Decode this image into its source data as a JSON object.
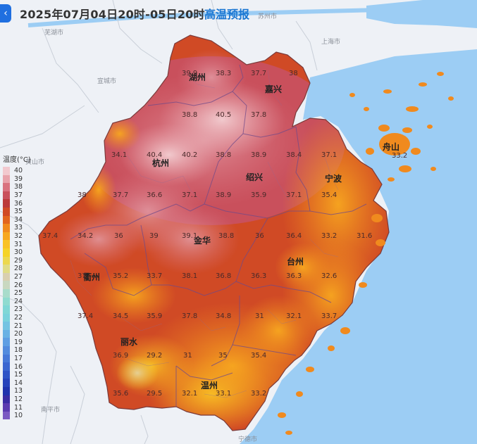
{
  "header": {
    "back_icon": "chevron-left-icon",
    "title": "2025年07月04日20时-05日20时",
    "tag": "高温预报"
  },
  "legend": {
    "title": "温度(°C)",
    "items": [
      {
        "label": "40",
        "color": "#f2c9cf"
      },
      {
        "label": "39",
        "color": "#e8a2ab"
      },
      {
        "label": "38",
        "color": "#d9727f"
      },
      {
        "label": "37",
        "color": "#c9505c"
      },
      {
        "label": "36",
        "color": "#bb3a3a"
      },
      {
        "label": "35",
        "color": "#d04a25"
      },
      {
        "label": "34",
        "color": "#e2651f"
      },
      {
        "label": "33",
        "color": "#f08a1e"
      },
      {
        "label": "32",
        "color": "#f7a71f"
      },
      {
        "label": "31",
        "color": "#f9c224"
      },
      {
        "label": "30",
        "color": "#f5d326"
      },
      {
        "label": "29",
        "color": "#ecd84e"
      },
      {
        "label": "28",
        "color": "#e0dc86"
      },
      {
        "label": "27",
        "color": "#d9cfb0"
      },
      {
        "label": "26",
        "color": "#c9d8c0"
      },
      {
        "label": "25",
        "color": "#a8dccb"
      },
      {
        "label": "24",
        "color": "#8fdbd0"
      },
      {
        "label": "23",
        "color": "#7fd7d6"
      },
      {
        "label": "22",
        "color": "#79d2dc"
      },
      {
        "label": "21",
        "color": "#73c3e2"
      },
      {
        "label": "20",
        "color": "#69b1e4"
      },
      {
        "label": "19",
        "color": "#5e9ee3"
      },
      {
        "label": "18",
        "color": "#528bde"
      },
      {
        "label": "17",
        "color": "#4678d8"
      },
      {
        "label": "16",
        "color": "#3b66d0"
      },
      {
        "label": "15",
        "color": "#3054c6"
      },
      {
        "label": "14",
        "color": "#2743bb"
      },
      {
        "label": "13",
        "color": "#2033ad"
      },
      {
        "label": "12",
        "color": "#3a2ca3"
      },
      {
        "label": "11",
        "color": "#5b3bb0"
      },
      {
        "label": "10",
        "color": "#7b59c2"
      }
    ]
  },
  "cities": [
    {
      "name": "湖州"
    },
    {
      "name": "嘉兴"
    },
    {
      "name": "杭州"
    },
    {
      "name": "绍兴"
    },
    {
      "name": "宁波"
    },
    {
      "name": "舟山"
    },
    {
      "name": "金华"
    },
    {
      "name": "衢州"
    },
    {
      "name": "台州"
    },
    {
      "name": "丽水"
    },
    {
      "name": "温州"
    }
  ],
  "outside_places": [
    {
      "name": "芜湖市"
    },
    {
      "name": "苏州市"
    },
    {
      "name": "上海市"
    },
    {
      "name": "宣城市"
    },
    {
      "name": "黄山市"
    },
    {
      "name": "南平市"
    },
    {
      "name": "宁德市"
    }
  ],
  "temperatures": [
    "39.9",
    "38.3",
    "37.7",
    "38",
    "38.8",
    "40.5",
    "37.8",
    "34.1",
    "40.4",
    "40.2",
    "38.8",
    "38.9",
    "38.4",
    "37.1",
    "38",
    "37.7",
    "36.6",
    "37.1",
    "38.9",
    "35.9",
    "37.1",
    "35.4",
    "37.4",
    "34.2",
    "36",
    "39",
    "39.1",
    "38.8",
    "36",
    "36.4",
    "33.2",
    "31.6",
    "37",
    "35.2",
    "33.7",
    "38.1",
    "36.8",
    "36.3",
    "36.3",
    "32.6",
    "37.4",
    "34.5",
    "35.9",
    "37.8",
    "34.8",
    "31",
    "32.1",
    "33.7",
    "36.9",
    "29.2",
    "31",
    "35",
    "35.4",
    "35.6",
    "29.5",
    "32.1",
    "33.1",
    "33.2",
    "33.2"
  ]
}
